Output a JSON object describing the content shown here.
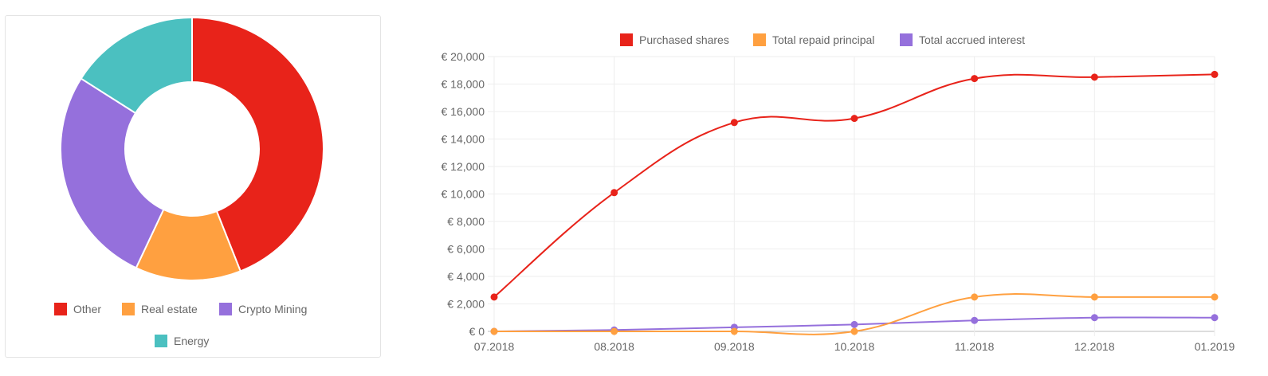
{
  "chart_data": [
    {
      "type": "pie",
      "variant": "doughnut",
      "categories": [
        "Other",
        "Real estate",
        "Crypto Mining",
        "Energy"
      ],
      "values": [
        44,
        13,
        27,
        16
      ],
      "colors": [
        "#e8231a",
        "#ffa040",
        "#9570dc",
        "#4bc0c0"
      ],
      "legend": "bottom"
    },
    {
      "type": "line",
      "x": [
        "07.2018",
        "08.2018",
        "09.2018",
        "10.2018",
        "11.2018",
        "12.2018",
        "01.2019"
      ],
      "series": [
        {
          "name": "Purchased shares",
          "color": "#e8231a",
          "values": [
            2500,
            10100,
            15200,
            15500,
            18400,
            18500,
            18700
          ]
        },
        {
          "name": "Total repaid principal",
          "color": "#ffa040",
          "values": [
            0,
            0,
            0,
            0,
            2500,
            2500,
            2500
          ]
        },
        {
          "name": "Total accrued interest",
          "color": "#9570dc",
          "values": [
            0,
            100,
            300,
            500,
            800,
            1000,
            1000
          ]
        }
      ],
      "ylim": [
        0,
        20000
      ],
      "yticks": [
        0,
        2000,
        4000,
        6000,
        8000,
        10000,
        12000,
        14000,
        16000,
        18000,
        20000
      ],
      "ytick_labels": [
        "€ 0",
        "€ 2,000",
        "€ 4,000",
        "€ 6,000",
        "€ 8,000",
        "€ 10,000",
        "€ 12,000",
        "€ 14,000",
        "€ 16,000",
        "€ 18,000",
        "€ 20,000"
      ],
      "grid": true,
      "legend": "top"
    }
  ]
}
